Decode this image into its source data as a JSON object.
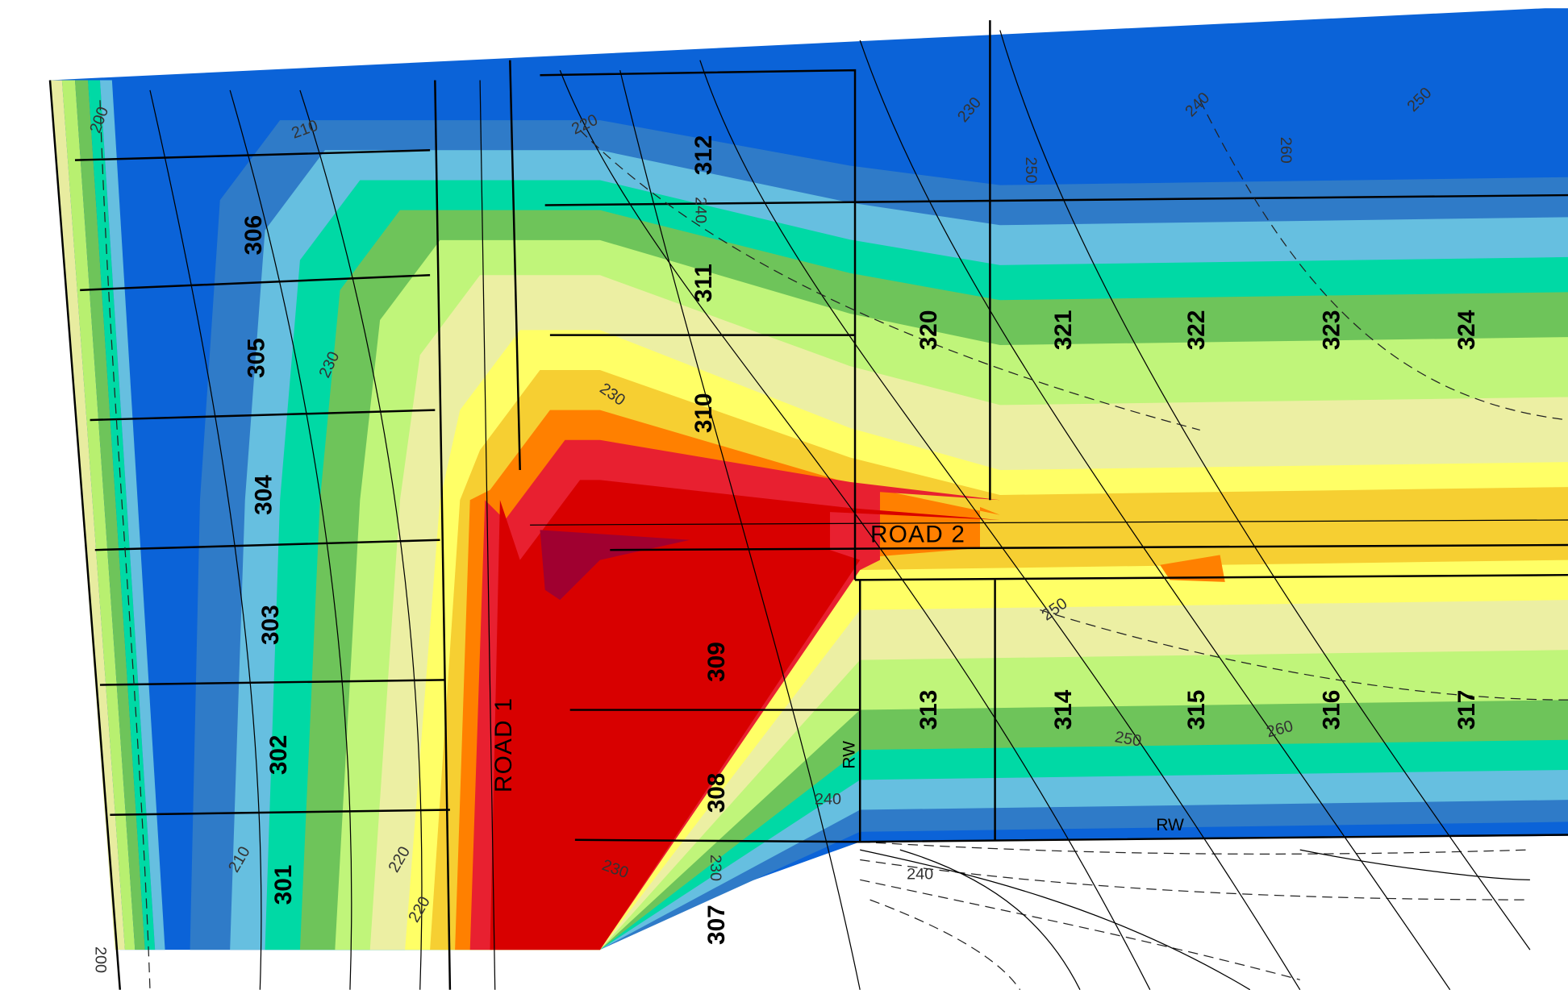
{
  "lots": [
    "306",
    "305",
    "304",
    "303",
    "302",
    "301",
    "312",
    "311",
    "310",
    "309",
    "308",
    "307",
    "320",
    "321",
    "322",
    "323",
    "324",
    "313",
    "314",
    "315",
    "316",
    "317"
  ],
  "roads": [
    "ROAD 1",
    "ROAD 2"
  ],
  "right_of_way": [
    "RW",
    "RW"
  ],
  "contour_labels": [
    "200",
    "210",
    "220",
    "230",
    "240",
    "250",
    "260",
    "250",
    "240",
    "220",
    "230",
    "230",
    "250",
    "260",
    "250",
    "240",
    "240",
    "230",
    "230",
    "220",
    "210",
    "200"
  ]
}
